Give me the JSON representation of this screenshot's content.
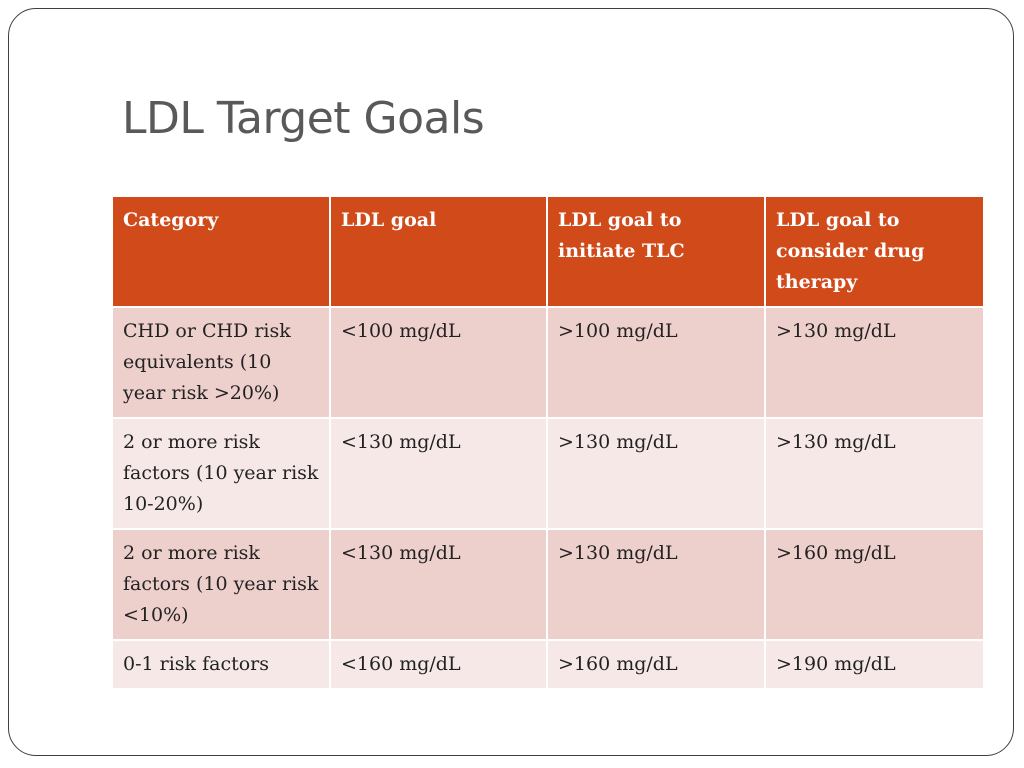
{
  "slide": {
    "title": "LDL Target Goals"
  },
  "table": {
    "headers": [
      "Category",
      "LDL goal",
      "LDL goal to initiate TLC",
      "LDL goal to consider drug therapy"
    ],
    "rows": [
      [
        "CHD or CHD risk equivalents (10 year risk >20%)",
        "<100 mg/dL",
        ">100 mg/dL",
        ">130 mg/dL"
      ],
      [
        "2 or more risk factors (10 year risk 10-20%)",
        "<130 mg/dL",
        ">130 mg/dL",
        ">130 mg/dL"
      ],
      [
        "2 or more risk factors (10 year risk <10%)",
        "<130 mg/dL",
        ">130 mg/dL",
        ">160 mg/dL"
      ],
      [
        "0-1 risk factors",
        "<160 mg/dL",
        ">160 mg/dL",
        ">190 mg/dL"
      ]
    ]
  },
  "colors": {
    "header_bg": "#d04a1a",
    "row_odd_bg": "#edcfcc",
    "row_even_bg": "#f6e8e7",
    "title_text": "#595959"
  }
}
